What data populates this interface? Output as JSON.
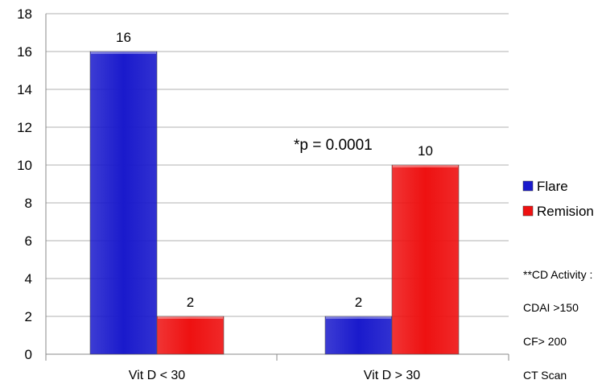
{
  "chart_data": {
    "type": "bar",
    "title": "",
    "xlabel": "",
    "ylabel": "",
    "categories": [
      "Vit D  < 30",
      "Vit D  > 30"
    ],
    "series": [
      {
        "name": "Flare",
        "color": "#1a1acc",
        "values": [
          16,
          2
        ]
      },
      {
        "name": "Remision",
        "color": "#ee1111",
        "values": [
          2,
          10
        ]
      }
    ],
    "ylim": [
      0,
      18
    ],
    "yticks": [
      "0",
      "2",
      "4",
      "6",
      "8",
      "10",
      "12",
      "14",
      "16",
      "18"
    ],
    "data_labels": [
      [
        "16",
        "2"
      ],
      [
        "2",
        "10"
      ]
    ],
    "grid": true,
    "legend_position": "right",
    "annotation": "*p = 0.0001",
    "notes": [
      "**CD Activity :",
      "CDAI  >150",
      "CF>  200",
      "CT Scan"
    ]
  }
}
